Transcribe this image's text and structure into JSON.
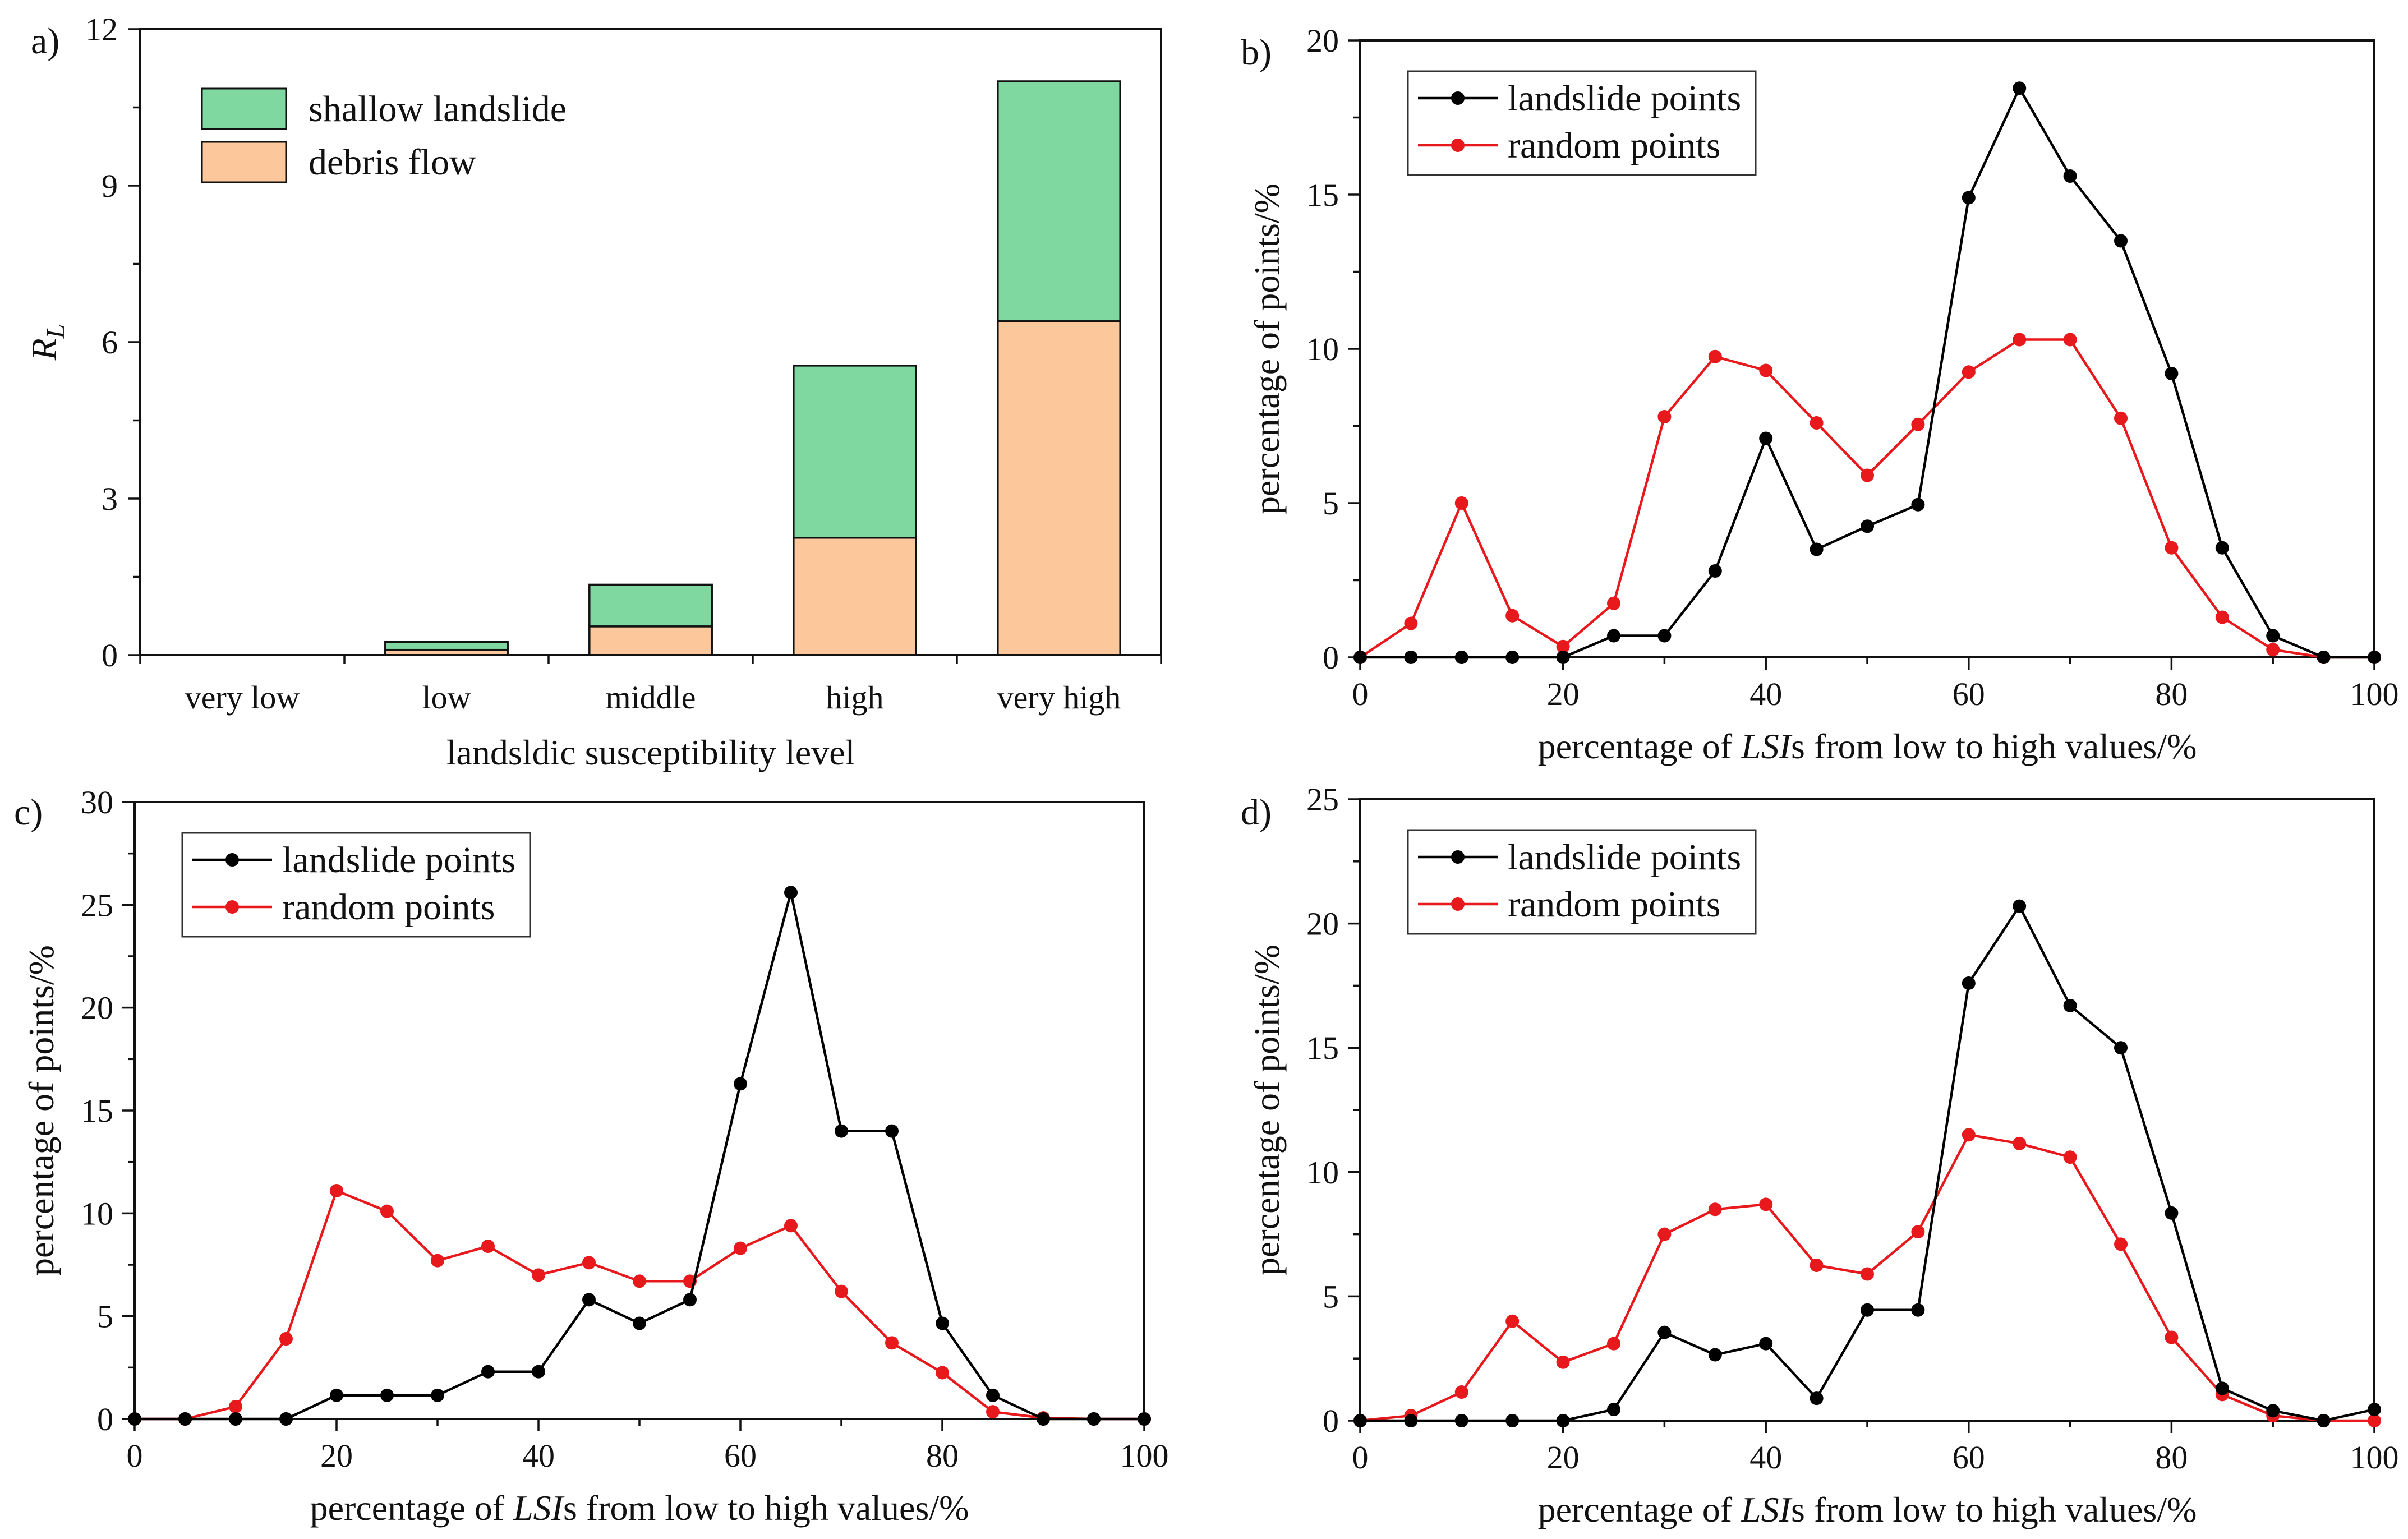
{
  "chart_data": [
    {
      "type": "bar",
      "panel_label": "a)",
      "title": "",
      "xlabel": "landsldic susceptibility level",
      "ylabel_main": "R",
      "ylabel_sub": "L",
      "ylim": [
        0,
        12
      ],
      "yticks": [
        0,
        3,
        6,
        9,
        12
      ],
      "categories": [
        "very low",
        "low",
        "middle",
        "high",
        "very high"
      ],
      "stacked": true,
      "series": [
        {
          "name": "debris flow",
          "color": "#FCC89B",
          "values": [
            0,
            0.1,
            0.55,
            2.25,
            6.4
          ]
        },
        {
          "name": "shallow landslide",
          "color": "#7FD89F",
          "values": [
            0,
            0.15,
            0.8,
            3.3,
            4.6
          ]
        }
      ],
      "legend_order": [
        "shallow landslide",
        "debris flow"
      ],
      "legend_position": "top-left"
    },
    {
      "type": "line",
      "panel_label": "b)",
      "xlabel_prefix": "percentage of ",
      "xlabel_italic": "LSI",
      "xlabel_suffix": "s from low to high values/%",
      "ylabel": "percentage of points/%",
      "xlim": [
        0,
        100
      ],
      "ylim": [
        0,
        20
      ],
      "xticks": [
        0,
        20,
        40,
        60,
        80,
        100
      ],
      "yticks": [
        0,
        5,
        10,
        15,
        20
      ],
      "x": [
        0,
        5,
        10,
        15,
        20,
        25,
        30,
        35,
        40,
        45,
        50,
        55,
        60,
        65,
        70,
        75,
        80,
        85,
        90,
        95,
        100
      ],
      "series": [
        {
          "name": "landslide points",
          "color": "#000000",
          "values": [
            0,
            0,
            0,
            0,
            0,
            0.7,
            0.7,
            2.8,
            7.1,
            3.5,
            4.25,
            4.95,
            14.9,
            18.45,
            15.6,
            13.5,
            9.2,
            3.55,
            0.7,
            0,
            0
          ]
        },
        {
          "name": "random points",
          "color": "#E8191C",
          "values": [
            0,
            1.1,
            5.0,
            1.35,
            0.35,
            1.75,
            7.8,
            9.75,
            9.3,
            7.6,
            5.9,
            7.55,
            9.25,
            10.3,
            10.3,
            7.75,
            3.55,
            1.3,
            0.25,
            0,
            0
          ]
        }
      ],
      "legend_position": "top-left"
    },
    {
      "type": "line",
      "panel_label": "c)",
      "xlabel_prefix": "percentage of ",
      "xlabel_italic": "LSI",
      "xlabel_suffix": "s from low to high values/%",
      "ylabel": "percentage of points/%",
      "xlim": [
        0,
        100
      ],
      "ylim": [
        0,
        30
      ],
      "xticks": [
        0,
        20,
        40,
        60,
        80,
        100
      ],
      "yticks": [
        0,
        5,
        10,
        15,
        20,
        25,
        30
      ],
      "x": [
        0,
        5,
        10,
        15,
        20,
        25,
        30,
        35,
        40,
        45,
        50,
        55,
        60,
        65,
        70,
        75,
        80,
        85,
        90,
        95,
        100
      ],
      "series": [
        {
          "name": "landslide points",
          "color": "#000000",
          "values": [
            0,
            0,
            0,
            0,
            1.15,
            1.15,
            1.15,
            2.3,
            2.3,
            5.8,
            4.65,
            5.8,
            16.3,
            25.6,
            14.0,
            14.0,
            4.65,
            1.15,
            0,
            0,
            0
          ]
        },
        {
          "name": "random points",
          "color": "#E8191C",
          "values": [
            0,
            0,
            0.6,
            3.9,
            11.1,
            10.1,
            7.7,
            8.4,
            7.0,
            7.6,
            6.7,
            6.7,
            8.3,
            9.4,
            6.2,
            3.7,
            2.25,
            0.35,
            0.05,
            0,
            0
          ]
        }
      ],
      "legend_position": "top-left"
    },
    {
      "type": "line",
      "panel_label": "d)",
      "xlabel_prefix": "percentage of ",
      "xlabel_italic": "LSI",
      "xlabel_suffix": "s from low to high values/%",
      "ylabel": "percentage of points/%",
      "xlim": [
        0,
        100
      ],
      "ylim": [
        0,
        25
      ],
      "xticks": [
        0,
        20,
        40,
        60,
        80,
        100
      ],
      "yticks": [
        0,
        5,
        10,
        15,
        20,
        25
      ],
      "x": [
        0,
        5,
        10,
        15,
        20,
        25,
        30,
        35,
        40,
        45,
        50,
        55,
        60,
        65,
        70,
        75,
        80,
        85,
        90,
        95,
        100
      ],
      "series": [
        {
          "name": "landslide points",
          "color": "#000000",
          "values": [
            0,
            0,
            0,
            0,
            0,
            0.45,
            3.55,
            2.65,
            3.1,
            0.9,
            4.45,
            4.45,
            17.6,
            20.7,
            16.7,
            15.0,
            8.35,
            1.3,
            0.4,
            0,
            0.45
          ]
        },
        {
          "name": "random points",
          "color": "#E8191C",
          "values": [
            0,
            0.2,
            1.15,
            4.0,
            2.35,
            3.1,
            7.5,
            8.5,
            8.7,
            6.25,
            5.9,
            7.6,
            11.5,
            11.15,
            10.6,
            7.1,
            3.35,
            1.05,
            0.2,
            0,
            0
          ]
        }
      ],
      "legend_position": "top-left"
    }
  ]
}
